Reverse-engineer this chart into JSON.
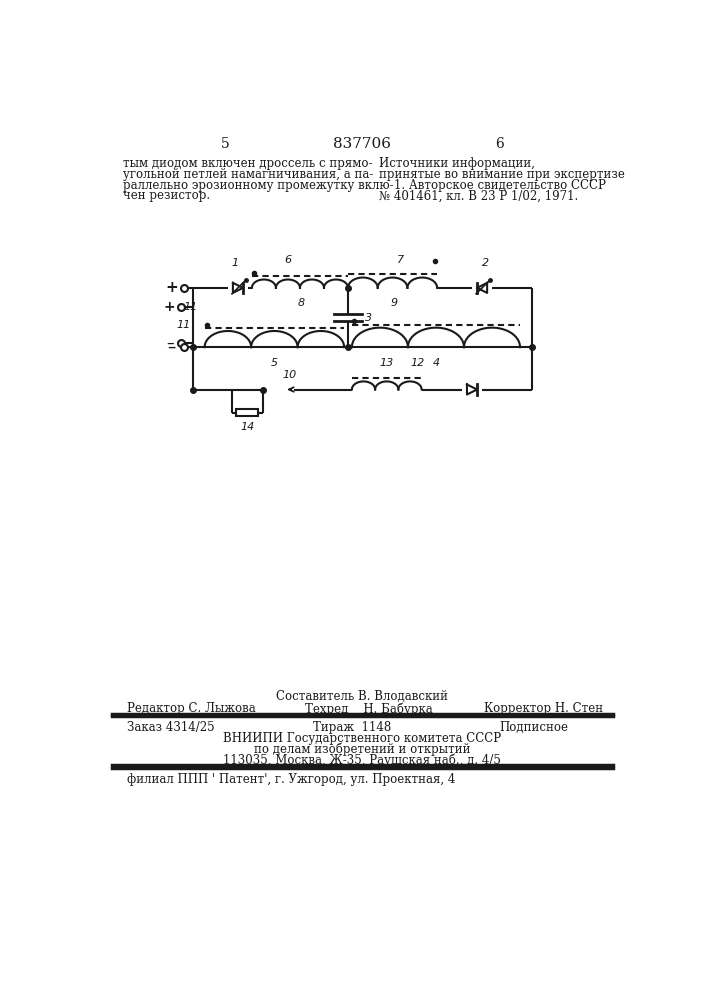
{
  "page_number_left": "5",
  "page_number_center": "837706",
  "page_number_right": "6",
  "left_text": "тым диодом включен дроссель с прямо-\nугольной петлей намагничивания, а па-\nраллельно эрозионному промежутку вклю-\nчен резистор.",
  "right_text_line1": "Источники информации,",
  "right_text_line2": "принятые во внимание при экспертизе",
  "right_text_line3": "    1. Авторское свидетельство СССР",
  "right_text_line4": "№ 401461, кл. В 23 Р 1/02, 1971.",
  "footer_composer": "Составитель В. Влодавский",
  "footer_editor": "Редактор С. Лыжова",
  "footer_techred": "Техред    Н. Бабурка",
  "footer_corrector": "Корректор Н. Стен",
  "footer_order": "Заказ 4314/25",
  "footer_tirazh": "Тираж  1148",
  "footer_podpisnoe": "Подписное",
  "footer_vniipи": "ВНИИПИ Государственного комитета СССР",
  "footer_dela": "по делам изобретений и открытий",
  "footer_addr": "113035, Москва, Ж-35, Раушская наб., д. 4/5",
  "footer_filial": "филиал ППП ' Патент', г. Ужгород, ул. Проектная, 4",
  "bg_color": "#ffffff",
  "line_color": "#1a1a1a",
  "text_color": "#1a1a1a"
}
